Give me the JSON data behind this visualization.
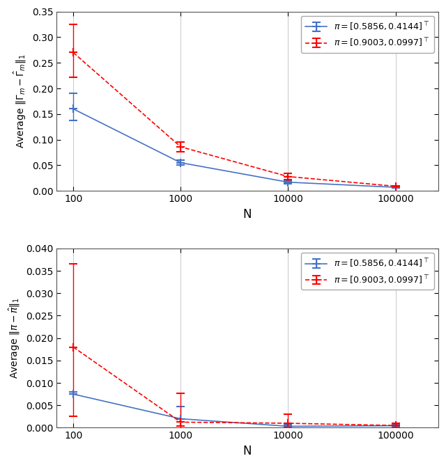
{
  "x": [
    100,
    1000,
    10000,
    100000
  ],
  "top": {
    "blue_y": [
      0.16,
      0.055,
      0.017,
      0.007
    ],
    "blue_yerr_lo": [
      0.022,
      0.005,
      0.003,
      0.001
    ],
    "blue_yerr_hi": [
      0.03,
      0.005,
      0.003,
      0.001
    ],
    "red_y": [
      0.27,
      0.086,
      0.028,
      0.009
    ],
    "red_yerr_lo": [
      0.048,
      0.01,
      0.006,
      0.001
    ],
    "red_yerr_hi": [
      0.055,
      0.01,
      0.006,
      0.001
    ],
    "ylim": [
      0,
      0.35
    ],
    "yticks": [
      0,
      0.05,
      0.1,
      0.15,
      0.2,
      0.25,
      0.3,
      0.35
    ],
    "ylabel": "Average $\\|\\Gamma_m - \\hat{\\Gamma}_m\\|_1$"
  },
  "bottom": {
    "blue_y": [
      0.0075,
      0.002,
      0.000325,
      0.00045
    ],
    "blue_yerr_lo": [
      0.0,
      0.0,
      0.0,
      5e-05
    ],
    "blue_yerr_hi": [
      0.0005,
      0.00275,
      0.0003,
      0.0004
    ],
    "red_y": [
      0.018,
      0.00125,
      0.001,
      0.0005
    ],
    "red_yerr_lo": [
      0.0155,
      0.00085,
      0.00085,
      0.0004
    ],
    "red_yerr_hi": [
      0.0185,
      0.0065,
      0.0021,
      0.0005
    ],
    "ylim": [
      0,
      0.04
    ],
    "yticks": [
      0,
      0.005,
      0.01,
      0.015,
      0.02,
      0.025,
      0.03,
      0.035,
      0.04
    ],
    "ylabel": "Average $\\|\\pi - \\hat{\\pi}\\|_1$"
  },
  "xlabel": "N",
  "blue_color": "#4472C4",
  "red_color": "#FF0000",
  "legend_label_blue": "$\\pi = [0.5856, 0.4144]^{\\top}$",
  "legend_label_red": "$\\pi = [0.9003, 0.0997]^{\\top}$",
  "figsize": [
    6.4,
    6.68
  ],
  "dpi": 100,
  "bg_color": "#f2f2f2"
}
